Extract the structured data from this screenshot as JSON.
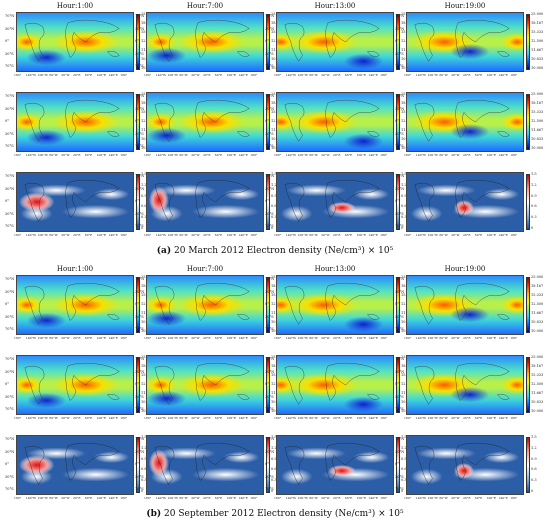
{
  "hours": [
    "Hour:1:00",
    "Hour:7:00",
    "Hour:13:00",
    "Hour:19:00"
  ],
  "density_ticks": [
    "25.000",
    "18.167",
    "15.333",
    "12.500",
    "11.667",
    "10.833",
    "10.000"
  ],
  "ratio_ticks": [
    "1.5",
    "1.2",
    "0.9",
    "0.6",
    "0.3",
    "0"
  ],
  "lat_labels": [
    "70°N",
    "30°N",
    "0°",
    "30°S",
    "70°S"
  ],
  "lon_labels": [
    "180°",
    "140°W",
    "100°W",
    "60°W",
    "20°W",
    "20°E",
    "60°E",
    "100°E",
    "140°E",
    "180°"
  ],
  "captions": {
    "a_label": "(a)",
    "a_text": "20 March 2012 Electron density (Ne/cm³) × 10⁵",
    "b_label": "(b)",
    "b_text": "20 September 2012 Electron density (Ne/cm³) × 10⁵"
  },
  "colors": {
    "density_high": "#d40000",
    "density_mid": "#f6f600",
    "density_low": "#0000a0",
    "ratio_high": "#cc0000",
    "ratio_low": "#1a4f9a"
  }
}
